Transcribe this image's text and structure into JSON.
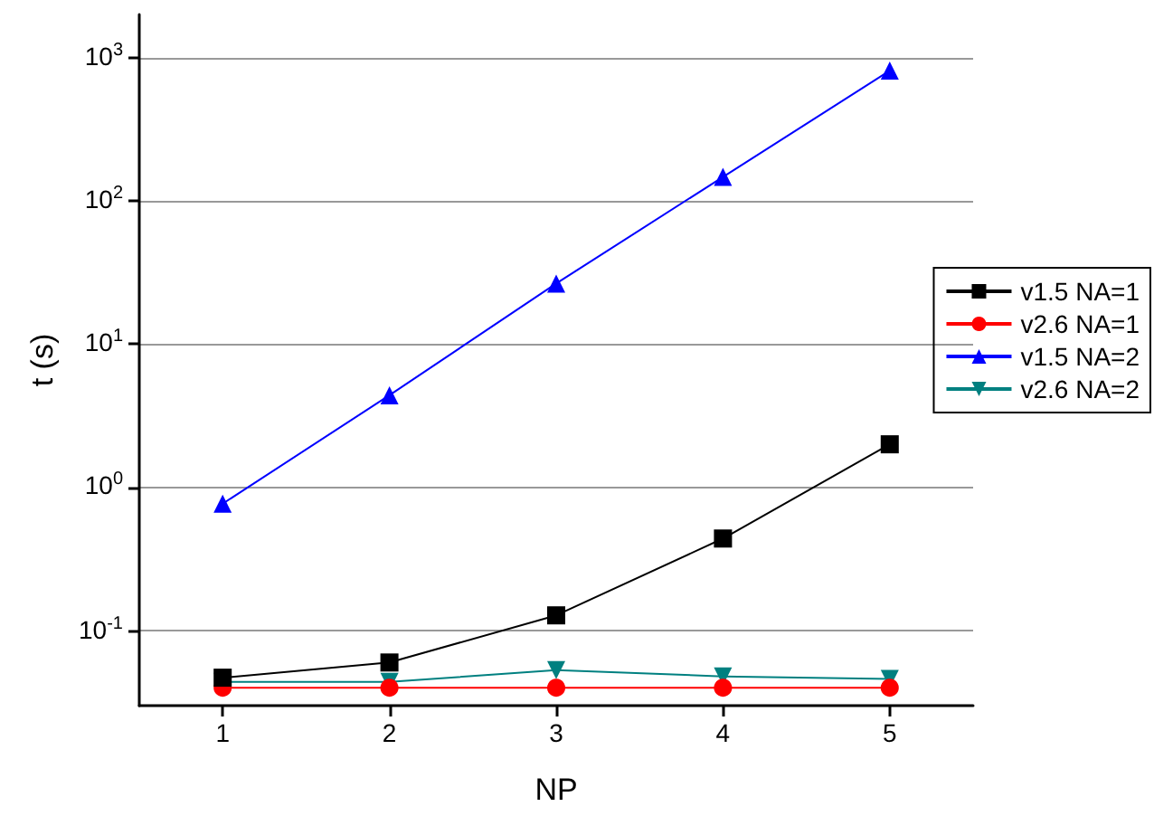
{
  "chart_data": {
    "type": "line",
    "xlabel": "NP",
    "ylabel": "t (s)",
    "x": [
      1,
      2,
      3,
      4,
      5
    ],
    "series": [
      {
        "name": "v1.5 NA=1",
        "color": "#000000",
        "marker": "square",
        "values": [
          0.047,
          0.06,
          0.128,
          0.44,
          2.0
        ]
      },
      {
        "name": "v2.6 NA=1",
        "color": "#ff0000",
        "marker": "circle",
        "values": [
          0.04,
          0.04,
          0.04,
          0.04,
          0.04
        ]
      },
      {
        "name": "v1.5 NA=2",
        "color": "#0000ff",
        "marker": "triangle",
        "values": [
          0.77,
          4.4,
          26.5,
          147,
          811
        ]
      },
      {
        "name": "v2.6 NA=2",
        "color": "#008080",
        "marker": "triangle-down",
        "values": [
          0.044,
          0.044,
          0.053,
          0.048,
          0.046
        ]
      }
    ],
    "xlim": [
      0.5,
      5.5
    ],
    "xticks": [
      1,
      2,
      3,
      4,
      5
    ],
    "ylim": [
      0.03,
      2000
    ],
    "yticks": [
      {
        "value": 0.1,
        "label": "10$^{-1}$"
      },
      {
        "value": 1,
        "label": "10$^{0}$"
      },
      {
        "value": 10,
        "label": "10$^{1}$"
      },
      {
        "value": 100,
        "label": "10$^{2}$"
      },
      {
        "value": 1000,
        "label": "10$^{3}$"
      }
    ],
    "log": "y",
    "grid": "y",
    "legend": "right",
    "line_style": "solid"
  }
}
